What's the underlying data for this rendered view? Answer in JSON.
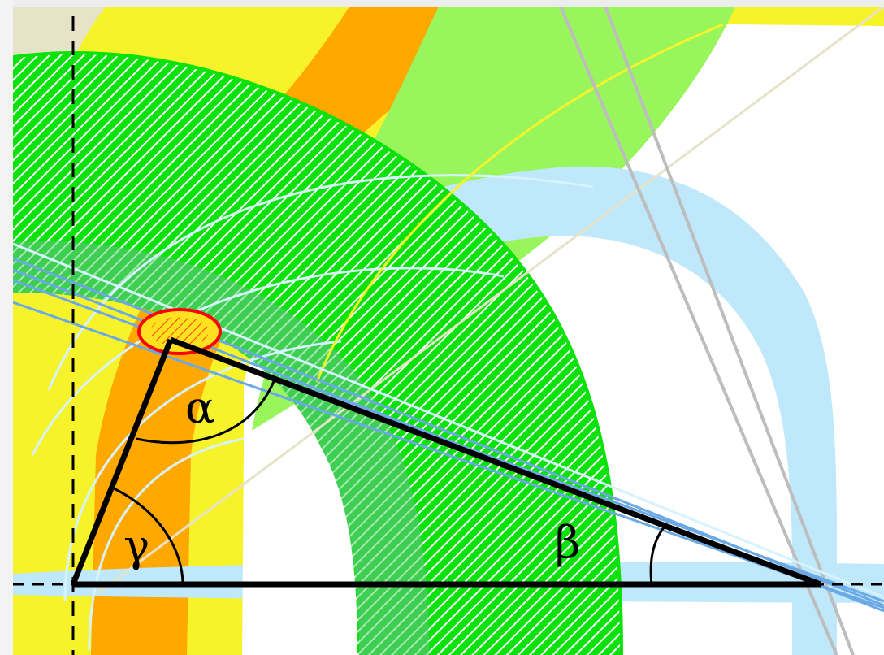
{
  "labels": {
    "alpha": "α",
    "beta": "β",
    "gamma": "γ"
  },
  "colors": {
    "yellow": "#f7f32a",
    "orange": "#ffa800",
    "light_green": "#98f65c",
    "bright_green": "#0be10b",
    "mid_green": "#3ecf52",
    "light_blue": "#bfe8fb",
    "blue_line": "#6aa9e6",
    "gray_line": "#bdbdbd",
    "beige": "#e6e3c8",
    "error_ellipse_fill": "#ffe21f",
    "error_ellipse_stroke": "#ff0000",
    "triangle": "#000000"
  }
}
